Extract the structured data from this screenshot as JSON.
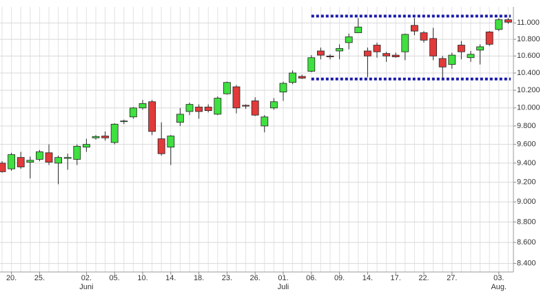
{
  "chart_data": {
    "type": "candlestick",
    "categories": [
      null,
      "20.",
      null,
      null,
      "25.",
      null,
      null,
      null,
      null,
      "02.",
      null,
      null,
      "05.",
      null,
      null,
      "10.",
      null,
      null,
      "14.",
      null,
      null,
      "18.",
      null,
      null,
      "23.",
      null,
      null,
      "26.",
      null,
      null,
      "01.",
      null,
      null,
      "06.",
      null,
      null,
      "09.",
      null,
      null,
      "14.",
      null,
      null,
      "17.",
      null,
      null,
      "22.",
      null,
      null,
      "27.",
      null,
      null,
      null,
      null,
      "03.",
      null
    ],
    "month_labels": [
      null,
      null,
      null,
      null,
      null,
      null,
      null,
      null,
      null,
      "Juni",
      null,
      null,
      null,
      null,
      null,
      null,
      null,
      null,
      null,
      null,
      null,
      null,
      null,
      null,
      null,
      null,
      null,
      null,
      null,
      null,
      "Juli",
      null,
      null,
      null,
      null,
      null,
      null,
      null,
      null,
      null,
      null,
      null,
      null,
      null,
      null,
      null,
      null,
      null,
      null,
      null,
      null,
      null,
      null,
      "Aug.",
      null
    ],
    "open": [
      9400,
      9340,
      9460,
      9410,
      9440,
      9510,
      9400,
      9450,
      9440,
      9570,
      9670,
      9690,
      9620,
      9850,
      9900,
      10000,
      10070,
      9660,
      9570,
      9840,
      9960,
      10010,
      10010,
      9930,
      10160,
      10240,
      10030,
      10080,
      9800,
      10000,
      10180,
      10290,
      10360,
      10420,
      10660,
      10600,
      10660,
      10760,
      10880,
      10660,
      10730,
      10630,
      10610,
      10650,
      10970,
      10880,
      10810,
      10570,
      10500,
      10730,
      10580,
      10670,
      10890,
      10920,
      11040
    ],
    "high": [
      9420,
      9510,
      9520,
      9470,
      9540,
      9600,
      9480,
      9500,
      9600,
      9660,
      9700,
      9740,
      9830,
      9870,
      10010,
      10090,
      10090,
      9840,
      9700,
      10000,
      10060,
      10040,
      10040,
      10130,
      10300,
      10260,
      10040,
      10120,
      9920,
      10110,
      10300,
      10430,
      10380,
      10610,
      10700,
      10620,
      10740,
      10870,
      11060,
      10700,
      10760,
      10650,
      10640,
      10870,
      11060,
      10900,
      10940,
      10600,
      10640,
      10780,
      10660,
      10740,
      10900,
      11060,
      11060
    ],
    "low": [
      9300,
      9320,
      9340,
      9240,
      9420,
      9380,
      9180,
      9330,
      9380,
      9520,
      9650,
      9640,
      9600,
      9820,
      9880,
      9980,
      9700,
      9480,
      9380,
      9800,
      9920,
      9880,
      9950,
      9920,
      10150,
      9940,
      9990,
      9910,
      9730,
      9980,
      10080,
      10270,
      10330,
      10410,
      10560,
      10560,
      10560,
      10680,
      10880,
      10350,
      10580,
      10530,
      10580,
      10550,
      10850,
      10760,
      10550,
      10330,
      10450,
      10560,
      10530,
      10500,
      10720,
      10900,
      10990
    ],
    "close": [
      9310,
      9490,
      9360,
      9430,
      9520,
      9410,
      9460,
      9460,
      9580,
      9600,
      9685,
      9670,
      9820,
      9855,
      10000,
      10050,
      9740,
      9500,
      9690,
      9930,
      10040,
      9960,
      9970,
      10110,
      10290,
      10000,
      10020,
      9920,
      9900,
      10070,
      10280,
      10400,
      10340,
      10580,
      10610,
      10590,
      10690,
      10830,
      10950,
      10600,
      10650,
      10600,
      10590,
      10860,
      10900,
      10790,
      10600,
      10470,
      10610,
      10650,
      10620,
      10710,
      10740,
      11040,
      11010
    ],
    "up_color": "#3fe03f",
    "down_color": "#e23a3a",
    "hlines": [
      {
        "value": 11085,
        "start": 33,
        "color": "#1a1aaa"
      },
      {
        "value": 10330,
        "start": 33,
        "color": "#1a1aaa"
      }
    ],
    "log_scale": true,
    "grid": true,
    "ylim": [
      8320,
      11200
    ],
    "yticks": [
      {
        "value": 8400,
        "label": "8.400"
      },
      {
        "value": 8600,
        "label": "8.600"
      },
      {
        "value": 8800,
        "label": "8.800"
      },
      {
        "value": 9000,
        "label": "9.000"
      },
      {
        "value": 9200,
        "label": "9.200"
      },
      {
        "value": 9400,
        "label": "9.400"
      },
      {
        "value": 9600,
        "label": "9.600"
      },
      {
        "value": 9800,
        "label": "9.800"
      },
      {
        "value": 10000,
        "label": "10.000"
      },
      {
        "value": 10200,
        "label": "10.200"
      },
      {
        "value": 10400,
        "label": "10.400"
      },
      {
        "value": 10600,
        "label": "10.600"
      },
      {
        "value": 10800,
        "label": "10.800"
      },
      {
        "value": 11000,
        "label": "11.000"
      }
    ]
  }
}
